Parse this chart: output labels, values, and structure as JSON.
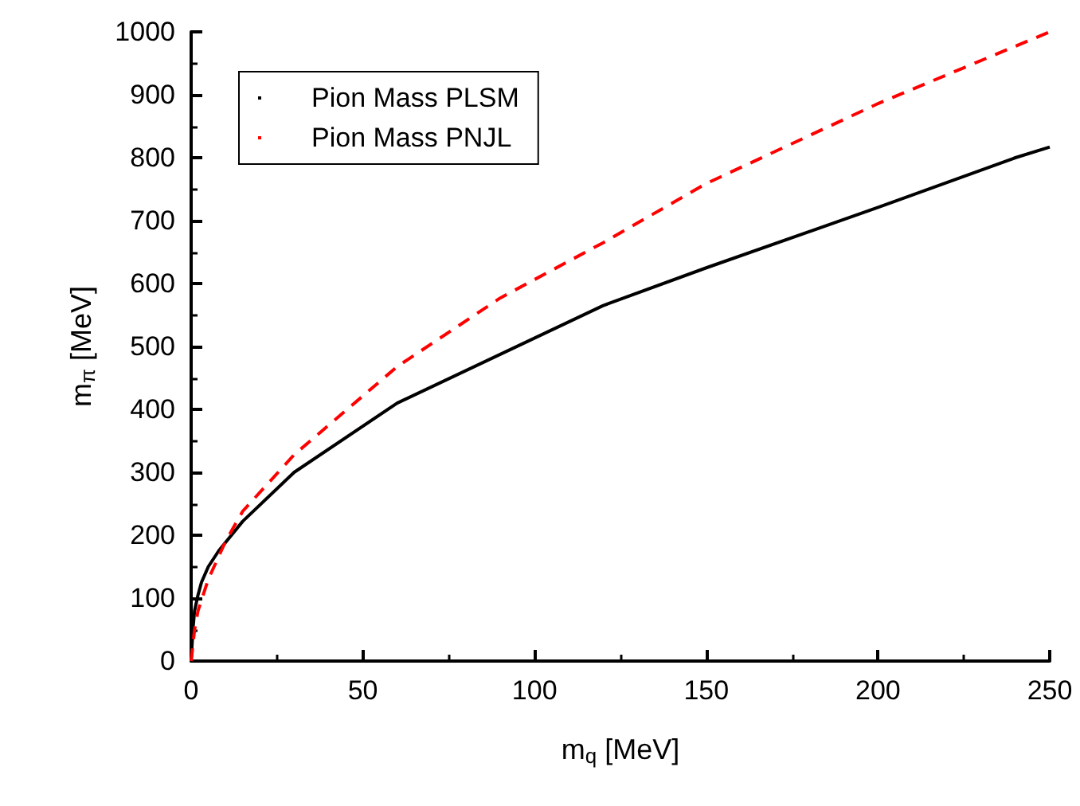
{
  "chart_data": {
    "type": "line",
    "xlabel": "m$_{q}$ [MeV]",
    "ylabel": "m$_{π}$ [MeV]",
    "xlim": [
      0,
      250
    ],
    "xticks": [
      0,
      50,
      100,
      150,
      200,
      250
    ],
    "ylim": [
      0,
      1000
    ],
    "yticks": [
      0,
      100,
      200,
      300,
      400,
      500,
      600,
      700,
      800,
      900,
      1000
    ],
    "grid": false,
    "legend": "top left",
    "marker": "none",
    "series": [
      {
        "name": "Pion Mass PLSM",
        "color": "#000000",
        "line_style": "solid",
        "x": [
          0,
          0.5,
          1,
          2,
          3,
          5,
          8,
          15,
          30,
          60,
          120,
          150,
          200,
          240,
          250
        ],
        "values": [
          0,
          50,
          80,
          105,
          125,
          150,
          175,
          222,
          300,
          410,
          565,
          625,
          721,
          800,
          817
        ]
      },
      {
        "name": "Pion Mass PNJL",
        "color": "#ff0000",
        "line_style": "dashed",
        "x": [
          0,
          1,
          2,
          5,
          10,
          15,
          30,
          60,
          90,
          120,
          150,
          200,
          250
        ],
        "values": [
          0,
          50,
          80,
          130,
          190,
          238,
          328,
          468,
          577,
          665,
          759,
          886,
          1000
        ]
      }
    ]
  }
}
